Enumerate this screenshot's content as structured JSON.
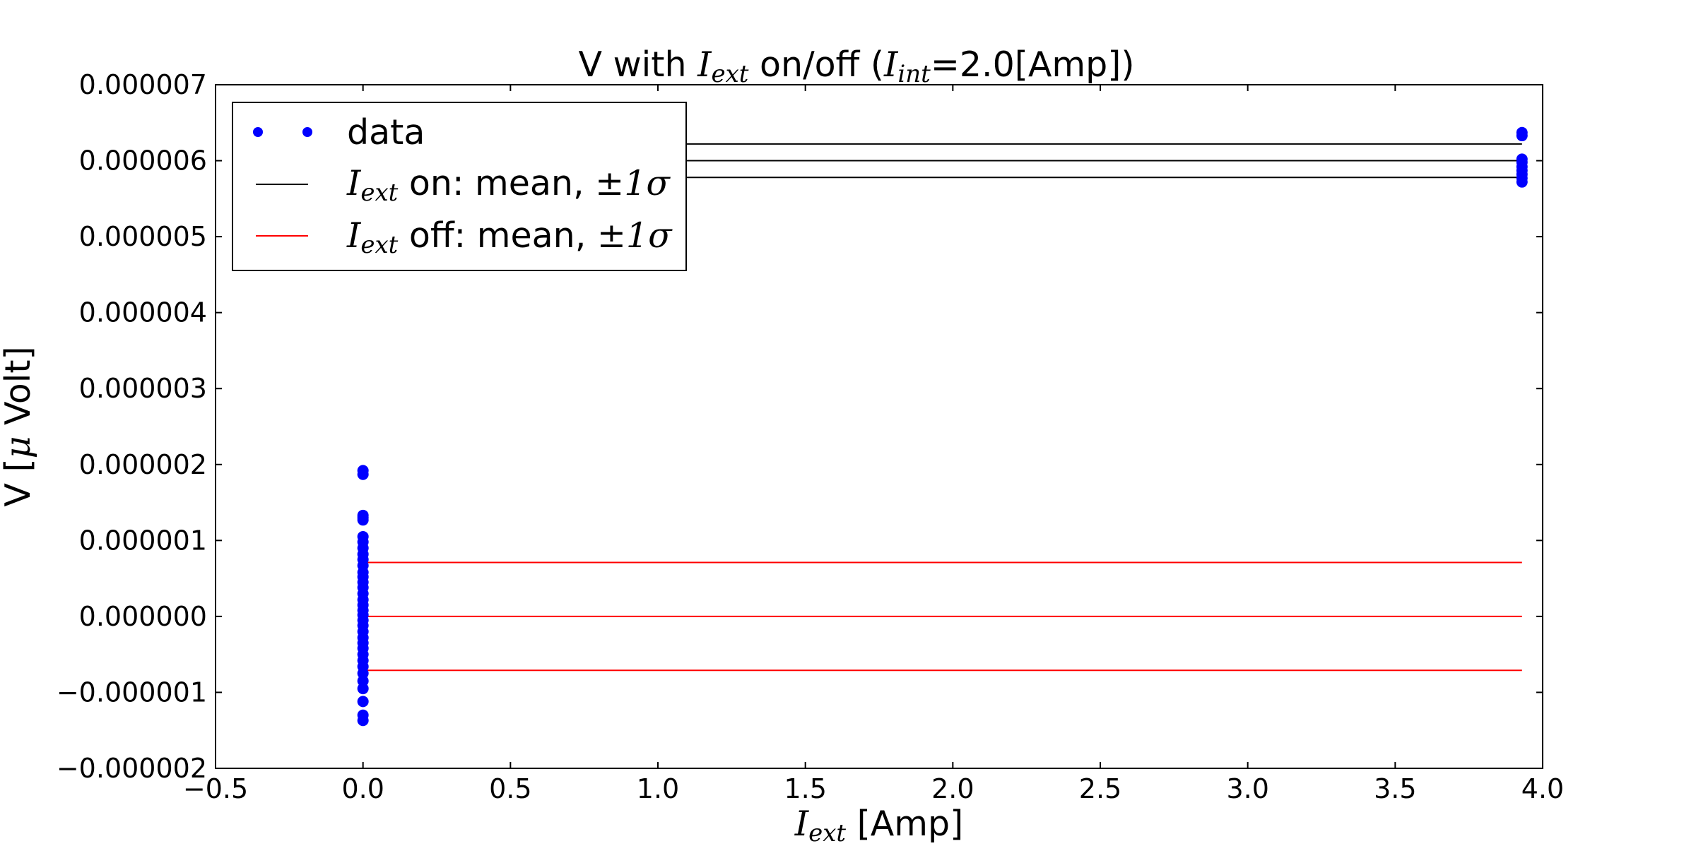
{
  "chart_data": {
    "type": "scatter",
    "title": {
      "prefix": "V with ",
      "var1_main": "I",
      "var1_sub": "ext",
      "middle": " on/off (",
      "var2_main": "I",
      "var2_sub": "int",
      "suffix": "=2.0[Amp])"
    },
    "xlabel": {
      "main": "I",
      "sub": "ext",
      "suffix": " [Amp]"
    },
    "ylabel": {
      "prefix": "V [",
      "mu": "μ",
      "suffix": " Volt]"
    },
    "xlim": [
      -0.5,
      4.0
    ],
    "ylim": [
      -2e-06,
      7e-06
    ],
    "xticks": [
      -0.5,
      0.0,
      0.5,
      1.0,
      1.5,
      2.0,
      2.5,
      3.0,
      3.5,
      4.0
    ],
    "xtick_labels": [
      "−0.5",
      "0.0",
      "0.5",
      "1.0",
      "1.5",
      "2.0",
      "2.5",
      "3.0",
      "3.5",
      "4.0"
    ],
    "yticks": [
      -2e-06,
      -1e-06,
      0.0,
      1e-06,
      2e-06,
      3e-06,
      4e-06,
      5e-06,
      6e-06,
      7e-06
    ],
    "ytick_labels": [
      "−0.000002",
      "−0.000001",
      "0.000000",
      "0.000001",
      "0.000002",
      "0.000003",
      "0.000004",
      "0.000005",
      "0.000006",
      "0.000007"
    ],
    "grid": false,
    "legend_position": "top-left",
    "colors": {
      "data": "#0000ff",
      "on": "#000000",
      "off": "#ff0000",
      "axes": "#000000"
    },
    "series": [
      {
        "name": "data",
        "kind": "points",
        "x_values": [
          0.0,
          3.93
        ],
        "points": [
          [
            0.0,
            1.92e-06
          ],
          [
            0.0,
            1.87e-06
          ],
          [
            0.0,
            1.33e-06
          ],
          [
            0.0,
            1.3e-06
          ],
          [
            0.0,
            1.27e-06
          ],
          [
            0.0,
            1.05e-06
          ],
          [
            0.0,
            9.8e-07
          ],
          [
            0.0,
            9e-07
          ],
          [
            0.0,
            8.2e-07
          ],
          [
            0.0,
            7.5e-07
          ],
          [
            0.0,
            6.7e-07
          ],
          [
            0.0,
            5.8e-07
          ],
          [
            0.0,
            5.2e-07
          ],
          [
            0.0,
            4.5e-07
          ],
          [
            0.0,
            3.8e-07
          ],
          [
            0.0,
            3e-07
          ],
          [
            0.0,
            2.2e-07
          ],
          [
            0.0,
            1.5e-07
          ],
          [
            0.0,
            8e-08
          ],
          [
            0.0,
            2e-08
          ],
          [
            0.0,
            -5e-08
          ],
          [
            0.0,
            -1.2e-07
          ],
          [
            0.0,
            -2e-07
          ],
          [
            0.0,
            -2.8e-07
          ],
          [
            0.0,
            -3.5e-07
          ],
          [
            0.0,
            -4.2e-07
          ],
          [
            0.0,
            -5e-07
          ],
          [
            0.0,
            -5.8e-07
          ],
          [
            0.0,
            -6.6e-07
          ],
          [
            0.0,
            -7.5e-07
          ],
          [
            0.0,
            -8.5e-07
          ],
          [
            0.0,
            -9.5e-07
          ],
          [
            0.0,
            -1.12e-06
          ],
          [
            0.0,
            -1.3e-06
          ],
          [
            0.0,
            -1.37e-06
          ],
          [
            3.93,
            6.37e-06
          ],
          [
            3.93,
            6.33e-06
          ],
          [
            3.93,
            6.02e-06
          ],
          [
            3.93,
            5.98e-06
          ],
          [
            3.93,
            5.92e-06
          ],
          [
            3.93,
            5.87e-06
          ],
          [
            3.93,
            5.82e-06
          ],
          [
            3.93,
            5.77e-06
          ],
          [
            3.93,
            5.72e-06
          ]
        ]
      },
      {
        "name": "on: mean, ±1σ",
        "kind": "hlines",
        "label_var": {
          "main": "I",
          "sub": "ext"
        },
        "label_text": " on: mean, ",
        "label_pm": "±1σ",
        "x_start": 0.0,
        "x_end": 3.93,
        "mean": 6e-06,
        "minus_sigma": 5.78e-06,
        "plus_sigma": 6.22e-06
      },
      {
        "name": "off: mean, ±1σ",
        "kind": "hlines",
        "label_var": {
          "main": "I",
          "sub": "ext"
        },
        "label_text": " off: mean, ",
        "label_pm": "±1σ",
        "x_start": 0.0,
        "x_end": 3.93,
        "mean": 0.0,
        "minus_sigma": -7.1e-07,
        "plus_sigma": 7.1e-07
      }
    ]
  }
}
